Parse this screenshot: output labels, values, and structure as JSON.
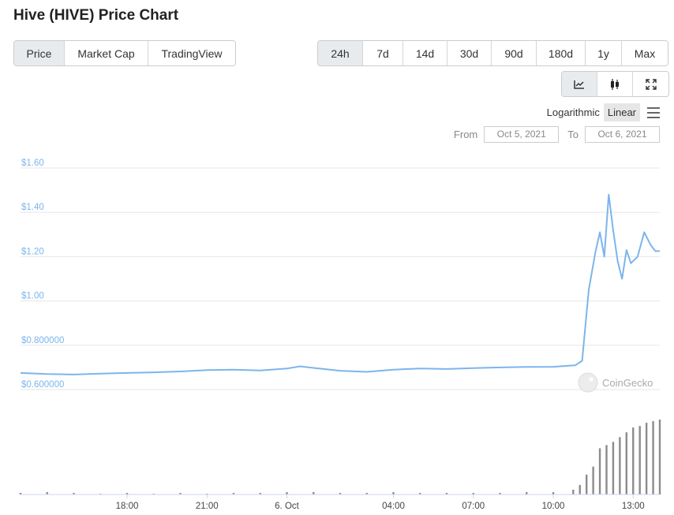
{
  "page": {
    "title": "Hive (HIVE) Price Chart"
  },
  "view_tabs": [
    {
      "label": "Price",
      "active": true
    },
    {
      "label": "Market Cap",
      "active": false
    },
    {
      "label": "TradingView",
      "active": false
    }
  ],
  "range_tabs": [
    {
      "label": "24h",
      "active": true
    },
    {
      "label": "7d",
      "active": false
    },
    {
      "label": "14d",
      "active": false
    },
    {
      "label": "30d",
      "active": false
    },
    {
      "label": "90d",
      "active": false
    },
    {
      "label": "180d",
      "active": false
    },
    {
      "label": "1y",
      "active": false
    },
    {
      "label": "Max",
      "active": false
    }
  ],
  "chart_type_buttons": [
    {
      "icon": "line-chart-icon",
      "active": true
    },
    {
      "icon": "candlestick-icon",
      "active": false
    },
    {
      "icon": "expand-icon",
      "active": false
    }
  ],
  "scale": {
    "log_label": "Logarithmic",
    "linear_label": "Linear",
    "active": "Linear"
  },
  "dates": {
    "from_label": "From",
    "from_value": "Oct 5, 2021",
    "to_label": "To",
    "to_value": "Oct 6, 2021"
  },
  "watermark": "CoinGecko",
  "colors": {
    "price_line": "#7cb5ec",
    "volume_bar": "#8c8c8c",
    "grid": "#e6e6e6",
    "axis_label": "#7cb5ec",
    "active_tab_bg": "#e8ebee"
  },
  "chart_data": {
    "type": "line",
    "title": "",
    "xlabel": "",
    "ylabel": "",
    "ylim": [
      0.6,
      1.6
    ],
    "y_ticks": [
      "$0.600000",
      "$0.800000",
      "$1.00",
      "$1.20",
      "$1.40",
      "$1.60"
    ],
    "y_tick_values": [
      0.6,
      0.8,
      1.0,
      1.2,
      1.4,
      1.6
    ],
    "x_ticks": [
      {
        "label": "18:00",
        "t": "2021-10-05 18:00"
      },
      {
        "label": "21:00",
        "t": "2021-10-05 21:00"
      },
      {
        "label": "6. Oct",
        "t": "2021-10-06 00:00"
      },
      {
        "label": "04:00",
        "t": "2021-10-06 04:00"
      },
      {
        "label": "07:00",
        "t": "2021-10-06 07:00"
      },
      {
        "label": "10:00",
        "t": "2021-10-06 10:00"
      },
      {
        "label": "13:00",
        "t": "2021-10-06 13:00"
      }
    ],
    "xlim": [
      "2021-10-05 14:00",
      "2021-10-06 14:00"
    ],
    "series": [
      {
        "values": [
          [
            "2021-10-05 14:00",
            0.675
          ],
          [
            "2021-10-05 15:00",
            0.67
          ],
          [
            "2021-10-05 16:00",
            0.668
          ],
          [
            "2021-10-05 17:00",
            0.672
          ],
          [
            "2021-10-05 18:00",
            0.675
          ],
          [
            "2021-10-05 19:00",
            0.678
          ],
          [
            "2021-10-05 20:00",
            0.682
          ],
          [
            "2021-10-05 21:00",
            0.688
          ],
          [
            "2021-10-05 22:00",
            0.69
          ],
          [
            "2021-10-05 23:00",
            0.686
          ],
          [
            "2021-10-06 00:00",
            0.695
          ],
          [
            "2021-10-06 00:30",
            0.705
          ],
          [
            "2021-10-06 01:00",
            0.698
          ],
          [
            "2021-10-06 02:00",
            0.685
          ],
          [
            "2021-10-06 03:00",
            0.68
          ],
          [
            "2021-10-06 04:00",
            0.69
          ],
          [
            "2021-10-06 05:00",
            0.695
          ],
          [
            "2021-10-06 06:00",
            0.693
          ],
          [
            "2021-10-06 07:00",
            0.697
          ],
          [
            "2021-10-06 08:00",
            0.7
          ],
          [
            "2021-10-06 09:00",
            0.702
          ],
          [
            "2021-10-06 10:00",
            0.703
          ],
          [
            "2021-10-06 10:50",
            0.71
          ],
          [
            "2021-10-06 11:05",
            0.73
          ],
          [
            "2021-10-06 11:20",
            1.05
          ],
          [
            "2021-10-06 11:35",
            1.22
          ],
          [
            "2021-10-06 11:45",
            1.31
          ],
          [
            "2021-10-06 11:55",
            1.2
          ],
          [
            "2021-10-06 12:05",
            1.48
          ],
          [
            "2021-10-06 12:15",
            1.32
          ],
          [
            "2021-10-06 12:25",
            1.18
          ],
          [
            "2021-10-06 12:35",
            1.1
          ],
          [
            "2021-10-06 12:45",
            1.23
          ],
          [
            "2021-10-06 12:55",
            1.17
          ],
          [
            "2021-10-06 13:10",
            1.2
          ],
          [
            "2021-10-06 13:25",
            1.31
          ],
          [
            "2021-10-06 13:40",
            1.25
          ],
          [
            "2021-10-06 13:50",
            1.225
          ],
          [
            "2021-10-06 14:00",
            1.225
          ]
        ]
      }
    ],
    "volume_values": [
      [
        "2021-10-05 14:00",
        2
      ],
      [
        "2021-10-05 15:00",
        3
      ],
      [
        "2021-10-05 16:00",
        2
      ],
      [
        "2021-10-05 17:00",
        1
      ],
      [
        "2021-10-05 18:00",
        2
      ],
      [
        "2021-10-05 19:00",
        1
      ],
      [
        "2021-10-05 20:00",
        2
      ],
      [
        "2021-10-05 21:00",
        1
      ],
      [
        "2021-10-05 22:00",
        2
      ],
      [
        "2021-10-05 23:00",
        2
      ],
      [
        "2021-10-06 00:00",
        3
      ],
      [
        "2021-10-06 01:00",
        3
      ],
      [
        "2021-10-06 02:00",
        2
      ],
      [
        "2021-10-06 03:00",
        2
      ],
      [
        "2021-10-06 04:00",
        3
      ],
      [
        "2021-10-06 05:00",
        2
      ],
      [
        "2021-10-06 06:00",
        2
      ],
      [
        "2021-10-06 07:00",
        2
      ],
      [
        "2021-10-06 08:00",
        2
      ],
      [
        "2021-10-06 09:00",
        3
      ],
      [
        "2021-10-06 10:00",
        3
      ],
      [
        "2021-10-06 10:45",
        6
      ],
      [
        "2021-10-06 11:00",
        12
      ],
      [
        "2021-10-06 11:15",
        25
      ],
      [
        "2021-10-06 11:30",
        35
      ],
      [
        "2021-10-06 11:45",
        58
      ],
      [
        "2021-10-06 12:00",
        62
      ],
      [
        "2021-10-06 12:15",
        66
      ],
      [
        "2021-10-06 12:30",
        72
      ],
      [
        "2021-10-06 12:45",
        78
      ],
      [
        "2021-10-06 13:00",
        84
      ],
      [
        "2021-10-06 13:15",
        86
      ],
      [
        "2021-10-06 13:30",
        90
      ],
      [
        "2021-10-06 13:45",
        92
      ],
      [
        "2021-10-06 14:00",
        94
      ]
    ],
    "grid": true,
    "legend": "none"
  }
}
